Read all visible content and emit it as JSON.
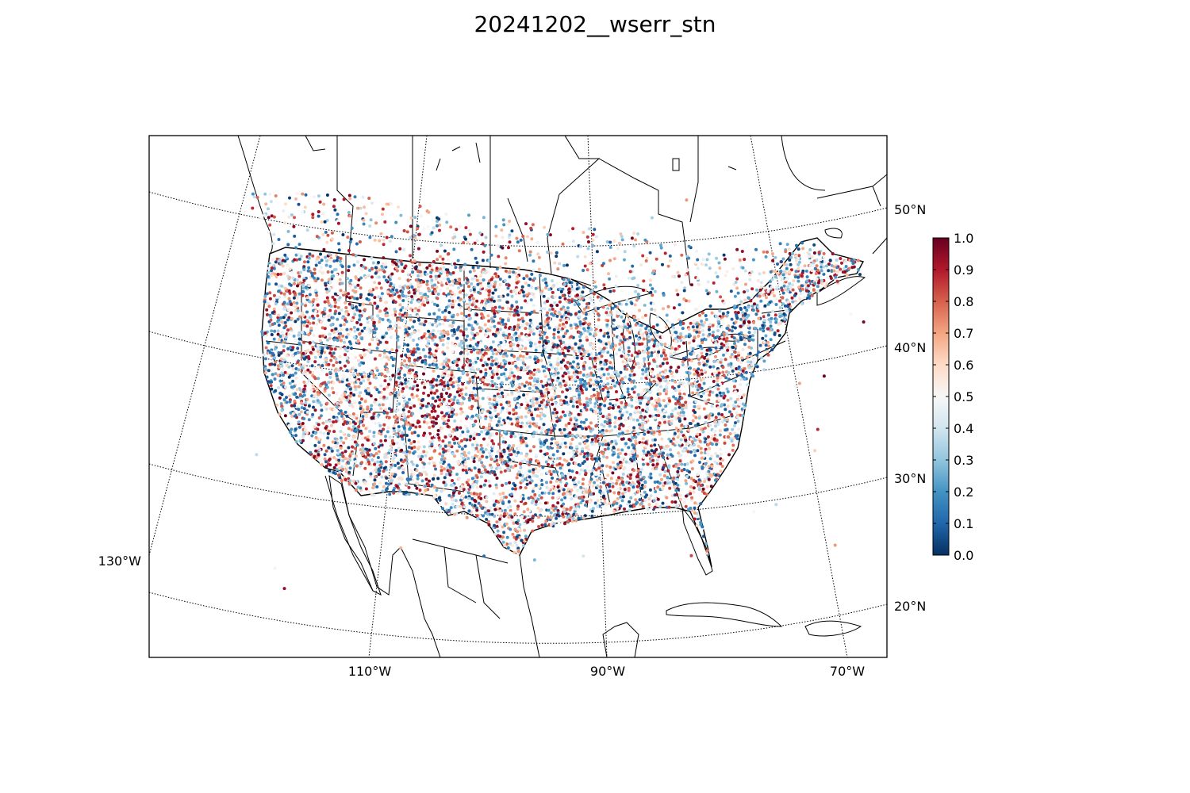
{
  "title": "20241202__wserr_stn",
  "map": {
    "projection": "lambert-conformal-conic",
    "lon_labels": [
      "110°W",
      "90°W",
      "70°W",
      "130°W"
    ],
    "lat_labels": [
      "50°N",
      "40°N",
      "30°N",
      "20°N"
    ],
    "graticule_style": "dotted",
    "coastline_color": "#000000",
    "border_color": "#000000"
  },
  "colorbar": {
    "colormap": "RdBu_r",
    "min": 0.0,
    "max": 1.0,
    "tick_labels": [
      "0.0",
      "0.1",
      "0.2",
      "0.3",
      "0.4",
      "0.5",
      "0.6",
      "0.7",
      "0.8",
      "0.9",
      "1.0"
    ],
    "colors": [
      "#053061",
      "#2166ac",
      "#4393c3",
      "#92c5de",
      "#d1e5f0",
      "#f7f7f7",
      "#fddbc7",
      "#f4a582",
      "#d6604d",
      "#b2182b",
      "#67001f"
    ]
  },
  "stations": {
    "description_value": "wserr",
    "approx_count": 8000
  }
}
